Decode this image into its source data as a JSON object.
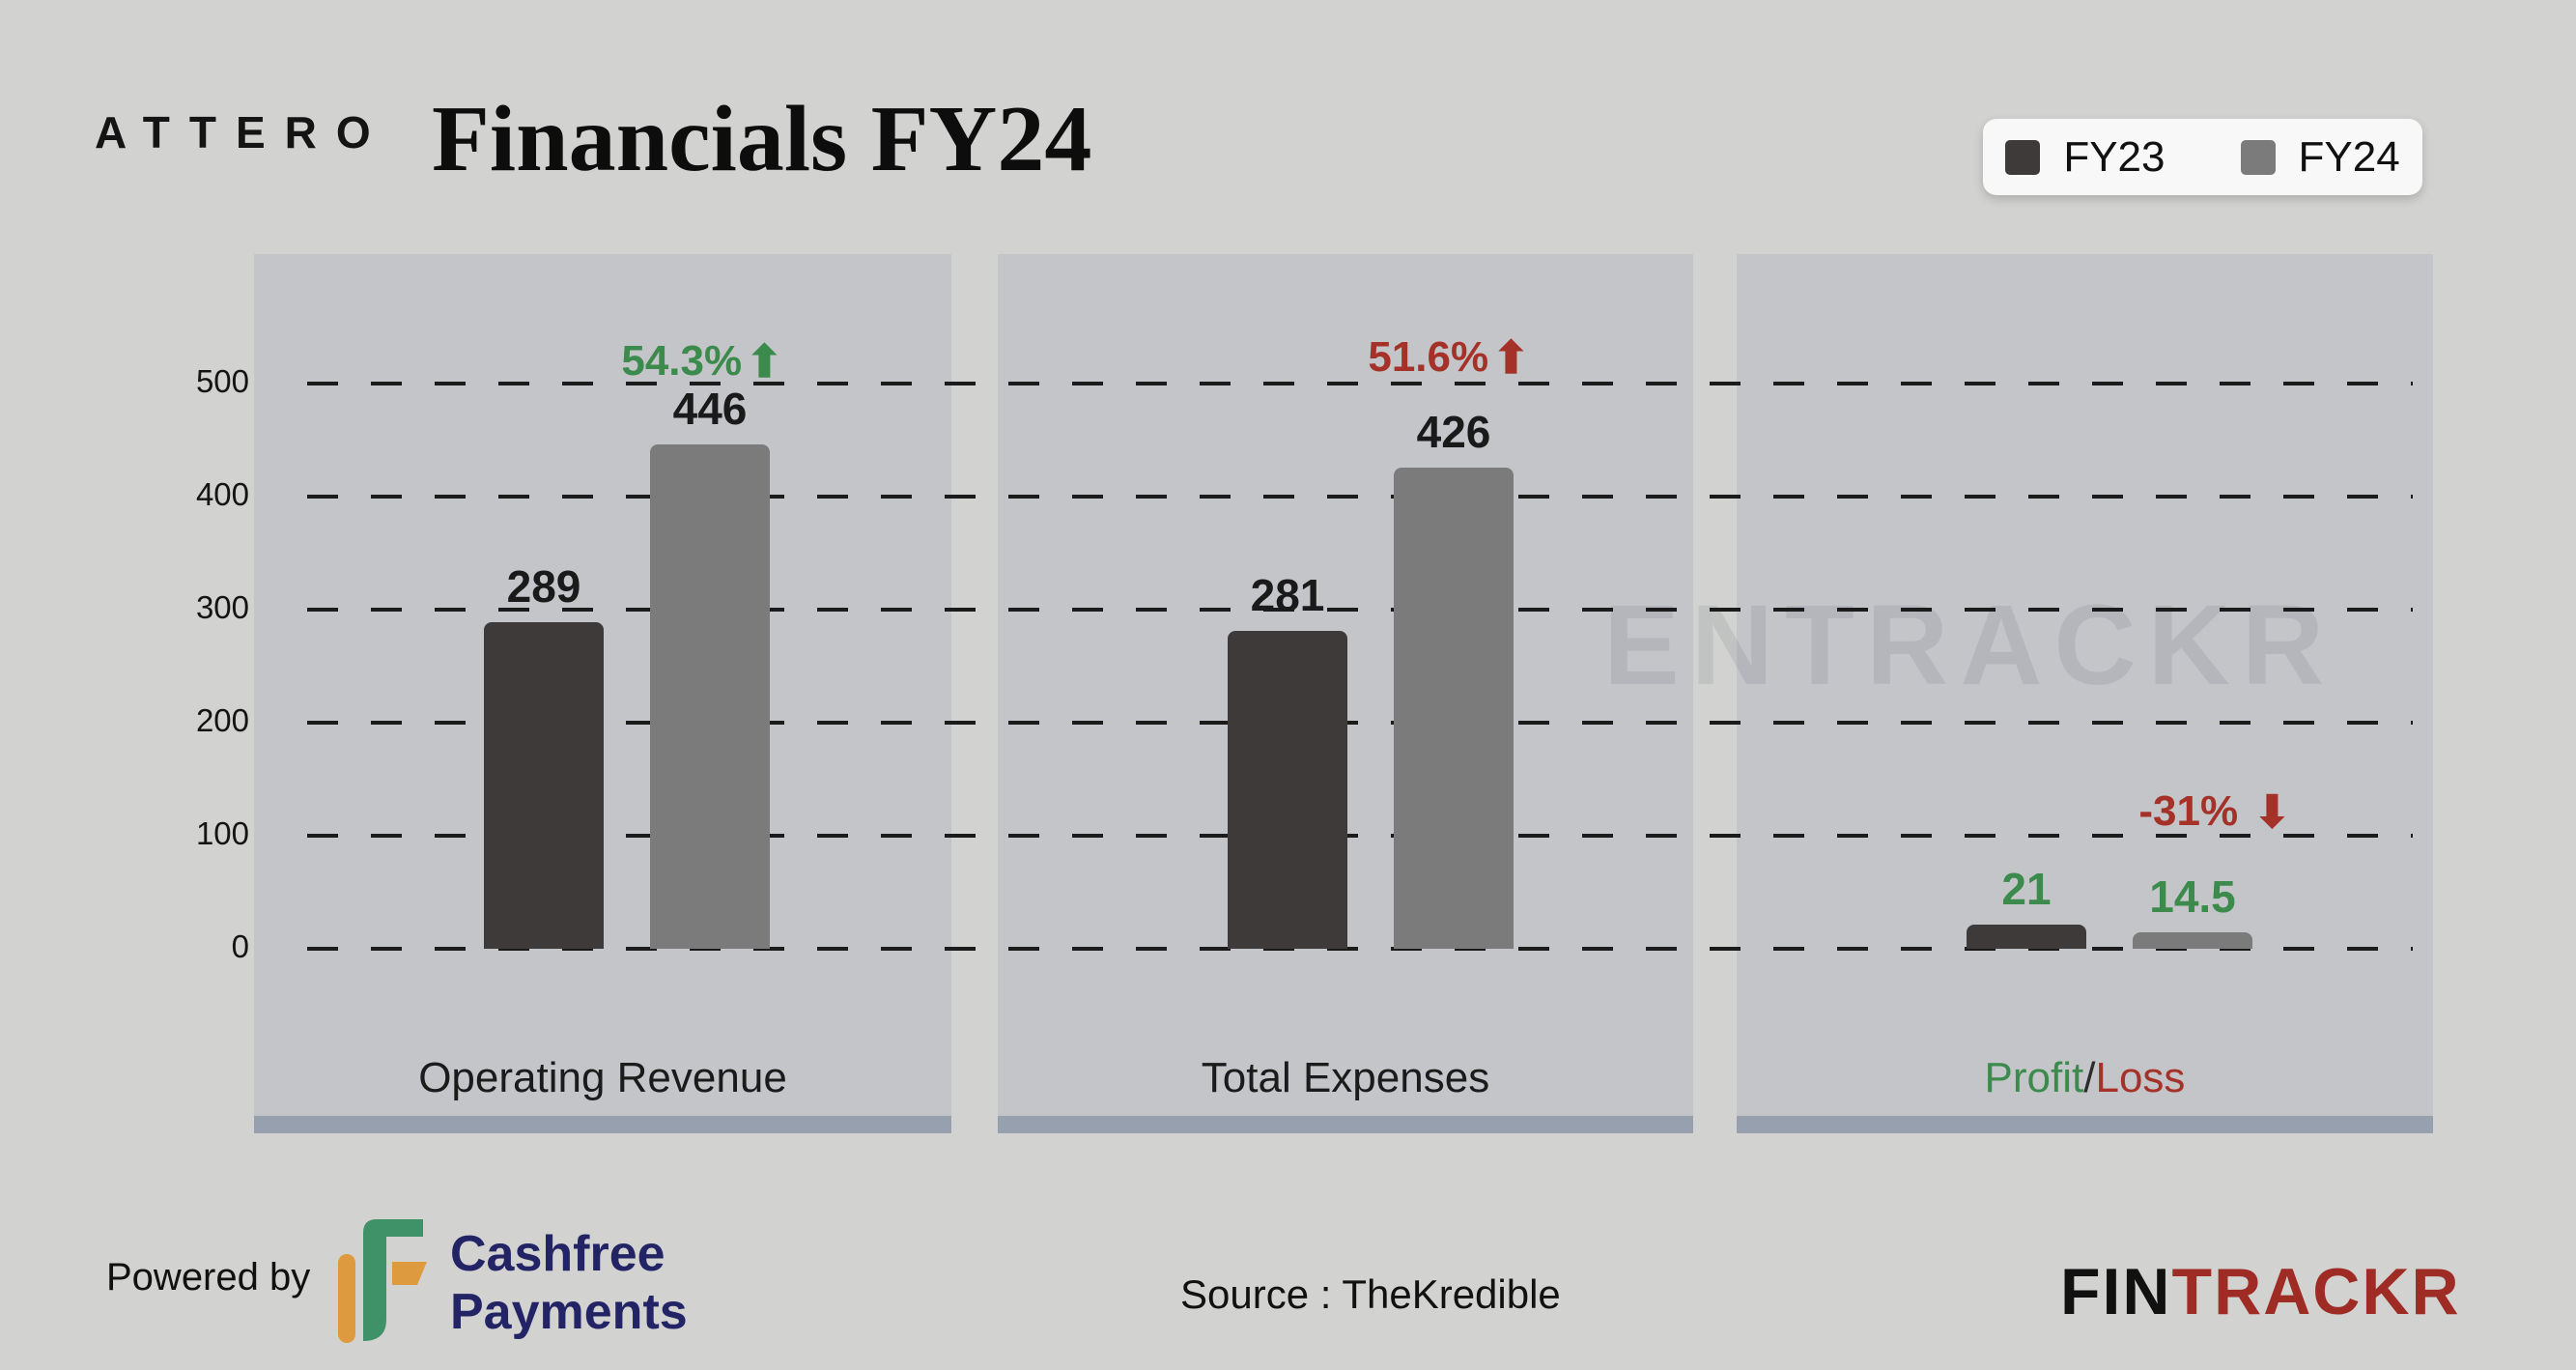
{
  "header": {
    "brand": "ATTERO",
    "title": "Financials FY24"
  },
  "legend": {
    "items": [
      {
        "label": "FY23",
        "color": "#3e3a3a"
      },
      {
        "label": "FY24",
        "color": "#7b7b7b"
      }
    ]
  },
  "chart_data": {
    "type": "bar",
    "title": "Attero Financials FY24",
    "categories": [
      "Operating Revenue",
      "Total Expenses",
      "Profit/Loss"
    ],
    "series": [
      {
        "name": "FY23",
        "color": "#3e3a3a",
        "values": [
          289,
          281,
          21
        ]
      },
      {
        "name": "FY24",
        "color": "#7b7b7b",
        "values": [
          446,
          426,
          14.5
        ]
      }
    ],
    "changes": [
      {
        "label": "54.3%",
        "direction": "up",
        "color": "#3c8a4c"
      },
      {
        "label": "51.6%",
        "direction": "up",
        "color": "#a53229"
      },
      {
        "label": "-31%",
        "direction": "down",
        "color": "#a53229"
      }
    ],
    "value_label_colors": [
      "#1a1a1a",
      "#1a1a1a",
      "#3c8a4c"
    ],
    "profit_loss_label": {
      "profit": "Profit",
      "slash": "/",
      "loss": "Loss",
      "profit_color": "#3c8a4c",
      "slash_color": "#2b2b2b",
      "loss_color": "#a53229"
    },
    "y_ticks": [
      500,
      400,
      300,
      200,
      100,
      0
    ],
    "ylim": [
      0,
      500
    ],
    "grid": "dashed-horizontal",
    "legend_position": "top-right"
  },
  "watermark": "ENTRACKR",
  "footer": {
    "powered_by": "Powered by",
    "cashfree_logo": {
      "line1": "Cashfree",
      "line2": "Payments"
    },
    "source": "Source : TheKredible",
    "fintrackr": {
      "fin": "FIN",
      "trackr": "TRACKR"
    }
  }
}
